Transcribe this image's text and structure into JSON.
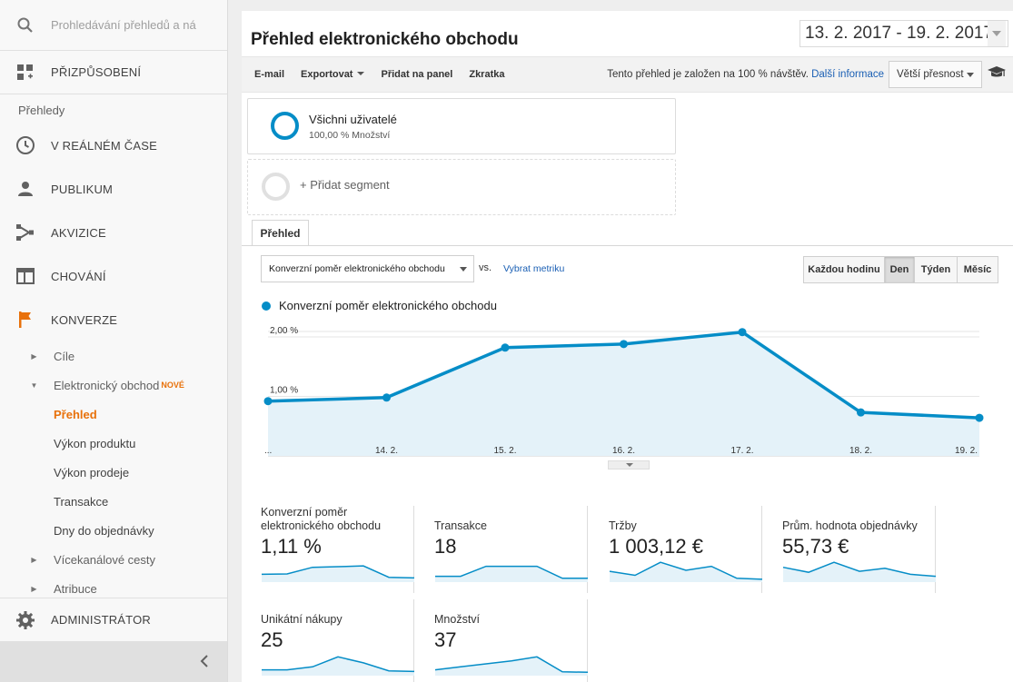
{
  "sidebar": {
    "search_placeholder": "Prohledávání přehledů a ná",
    "customize": "PŘIZPŮSOBENÍ",
    "section": "Přehledy",
    "items": [
      {
        "label": "V REÁLNÉM ČASE",
        "icon": "clock-icon"
      },
      {
        "label": "PUBLIKUM",
        "icon": "person-icon"
      },
      {
        "label": "AKVIZICE",
        "icon": "acquisition-icon"
      },
      {
        "label": "CHOVÁNÍ",
        "icon": "behavior-icon"
      },
      {
        "label": "KONVERZE",
        "icon": "flag-icon"
      }
    ],
    "conversions": {
      "cile": "Cíle",
      "ecommerce": "Elektronický obchod",
      "new_badge": "NOVÉ",
      "overview": "Přehled",
      "product_perf": "Výkon produktu",
      "sales_perf": "Výkon prodeje",
      "transactions": "Transakce",
      "days_to_purchase": "Dny do objednávky",
      "multichannel": "Vícekanálové cesty",
      "attribution": "Atribuce"
    },
    "admin": "ADMINISTRÁTOR"
  },
  "header": {
    "title": "Přehled elektronického obchodu",
    "date_range": "13. 2. 2017 - 19. 2. 2017"
  },
  "toolbar": {
    "email": "E-mail",
    "export": "Exportovat",
    "add_dashboard": "Přidat na panel",
    "shortcut": "Zkratka",
    "sampling_note": "Tento přehled je založen na 100 % návštěv.",
    "more_info": "Další informace",
    "precision": "Větší přesnost"
  },
  "segments": {
    "all_users": "Všichni uživatelé",
    "all_users_sub": "100,00 % Množství",
    "add": "+ Přidat segment"
  },
  "tab": "Přehled",
  "metric": {
    "selected": "Konverzní poměr elektronického obchodu",
    "vs": "vs.",
    "pick": "Vybrat metriku"
  },
  "periods": [
    "Každou hodinu",
    "Den",
    "Týden",
    "Měsíc"
  ],
  "active_period": "Den",
  "colors": {
    "accent": "#058dc7",
    "active_nav": "#e8710a"
  },
  "chart_data": {
    "type": "area",
    "series": [
      {
        "name": "Konverzní poměr elektronického obchodu",
        "values": [
          0.92,
          0.98,
          1.82,
          1.88,
          2.08,
          0.73,
          0.64
        ]
      }
    ],
    "categories": [
      "...",
      "14. 2.",
      "15. 2.",
      "16. 2.",
      "17. 2.",
      "18. 2.",
      "19. 2."
    ],
    "y_ticks": [
      "1,00 %",
      "2,00 %"
    ],
    "ylim": [
      0,
      2.32
    ],
    "grid": true
  },
  "kpis": [
    {
      "label": "Konverzní poměr elektronického obchodu",
      "value": "1,11 %",
      "spark": [
        0.3,
        0.32,
        0.65,
        0.68,
        0.72,
        0.15,
        0.12
      ]
    },
    {
      "label": "Transakce",
      "value": "18",
      "spark": [
        0.2,
        0.2,
        0.7,
        0.7,
        0.7,
        0.1,
        0.1
      ]
    },
    {
      "label": "Tržby",
      "value": "1 003,12 €",
      "spark": [
        0.45,
        0.25,
        0.9,
        0.5,
        0.7,
        0.1,
        0.05
      ]
    },
    {
      "label": "Prům. hodnota objednávky",
      "value": "55,73 €",
      "spark": [
        0.65,
        0.4,
        0.9,
        0.45,
        0.6,
        0.3,
        0.2
      ]
    },
    {
      "label": "Unikátní nákupy",
      "value": "25",
      "spark": [
        0.2,
        0.2,
        0.35,
        0.85,
        0.55,
        0.15,
        0.12
      ]
    },
    {
      "label": "Množství",
      "value": "37",
      "spark": [
        0.2,
        0.35,
        0.5,
        0.65,
        0.85,
        0.1,
        0.08
      ]
    }
  ]
}
